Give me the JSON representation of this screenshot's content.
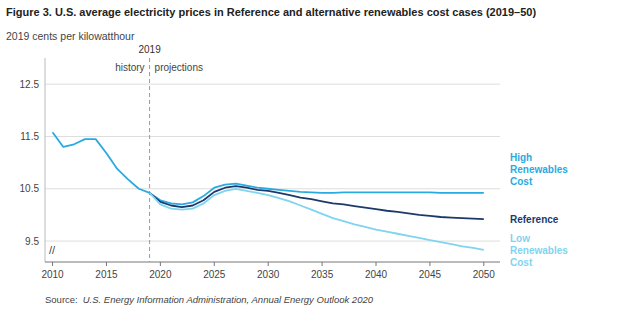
{
  "chart_data": {
    "type": "line",
    "title": "Figure 3. U.S. average electricity prices in Reference and alternative renewables cost cases (2019–50)",
    "y_label": "2019 cents per kilowatthour",
    "xlim": [
      2009.3,
      2051.5
    ],
    "xticks": [
      2010,
      2015,
      2020,
      2025,
      2030,
      2035,
      2040,
      2045,
      2050
    ],
    "ylim": [
      9.1,
      13.0
    ],
    "yticks": [
      9.5,
      10.5,
      11.5,
      12.5
    ],
    "grid": true,
    "legend": "right",
    "series": [
      {
        "color": "#29ABE2",
        "x": [
          2010,
          2011,
          2012,
          2013,
          2014,
          2015,
          2016,
          2017,
          2018,
          2019
        ],
        "values": [
          11.58,
          11.3,
          11.35,
          11.45,
          11.45,
          11.18,
          10.88,
          10.68,
          10.5,
          10.42
        ]
      },
      {
        "name": "High\nRenewables\nCost",
        "color": "#29ABE2",
        "x": [
          2019,
          2020,
          2021,
          2022,
          2023,
          2024,
          2025,
          2026,
          2027,
          2028,
          2029,
          2030,
          2031,
          2032,
          2033,
          2034,
          2035,
          2036,
          2037,
          2038,
          2039,
          2040,
          2041,
          2042,
          2043,
          2044,
          2045,
          2046,
          2047,
          2048,
          2049,
          2050
        ],
        "values": [
          10.42,
          10.28,
          10.22,
          10.2,
          10.24,
          10.36,
          10.52,
          10.58,
          10.6,
          10.56,
          10.52,
          10.5,
          10.48,
          10.46,
          10.44,
          10.43,
          10.42,
          10.42,
          10.43,
          10.43,
          10.43,
          10.43,
          10.43,
          10.43,
          10.43,
          10.43,
          10.43,
          10.42,
          10.42,
          10.42,
          10.42,
          10.42
        ]
      },
      {
        "name": "Reference",
        "color": "#1B3A6B",
        "x": [
          2019,
          2020,
          2021,
          2022,
          2023,
          2024,
          2025,
          2026,
          2027,
          2028,
          2029,
          2030,
          2031,
          2032,
          2033,
          2034,
          2035,
          2036,
          2037,
          2038,
          2039,
          2040,
          2041,
          2042,
          2043,
          2044,
          2045,
          2046,
          2047,
          2048,
          2049,
          2050
        ],
        "values": [
          10.42,
          10.25,
          10.18,
          10.15,
          10.18,
          10.28,
          10.44,
          10.52,
          10.55,
          10.52,
          10.48,
          10.46,
          10.42,
          10.38,
          10.33,
          10.3,
          10.26,
          10.22,
          10.2,
          10.17,
          10.14,
          10.11,
          10.08,
          10.06,
          10.03,
          10.0,
          9.98,
          9.96,
          9.95,
          9.94,
          9.93,
          9.92
        ]
      },
      {
        "name": "Low\nRenewables\nCost",
        "color": "#7FD4F0",
        "x": [
          2019,
          2020,
          2021,
          2022,
          2023,
          2024,
          2025,
          2026,
          2027,
          2028,
          2029,
          2030,
          2031,
          2032,
          2033,
          2034,
          2035,
          2036,
          2037,
          2038,
          2039,
          2040,
          2041,
          2042,
          2043,
          2044,
          2045,
          2046,
          2047,
          2048,
          2049,
          2050
        ],
        "values": [
          10.42,
          10.2,
          10.12,
          10.1,
          10.12,
          10.22,
          10.38,
          10.46,
          10.5,
          10.46,
          10.42,
          10.38,
          10.32,
          10.26,
          10.18,
          10.1,
          10.02,
          9.94,
          9.88,
          9.82,
          9.77,
          9.72,
          9.68,
          9.64,
          9.6,
          9.56,
          9.52,
          9.48,
          9.44,
          9.4,
          9.37,
          9.33
        ]
      }
    ],
    "annotations": [
      {
        "text": "2019",
        "x": 2019,
        "line_style": "dashed"
      },
      {
        "text": "history"
      },
      {
        "text": "projections"
      },
      {
        "text": "//"
      }
    ],
    "source": {
      "prefix": "Source:",
      "text": "U.S. Energy Information Administration, Annual Energy Outlook 2020"
    }
  }
}
